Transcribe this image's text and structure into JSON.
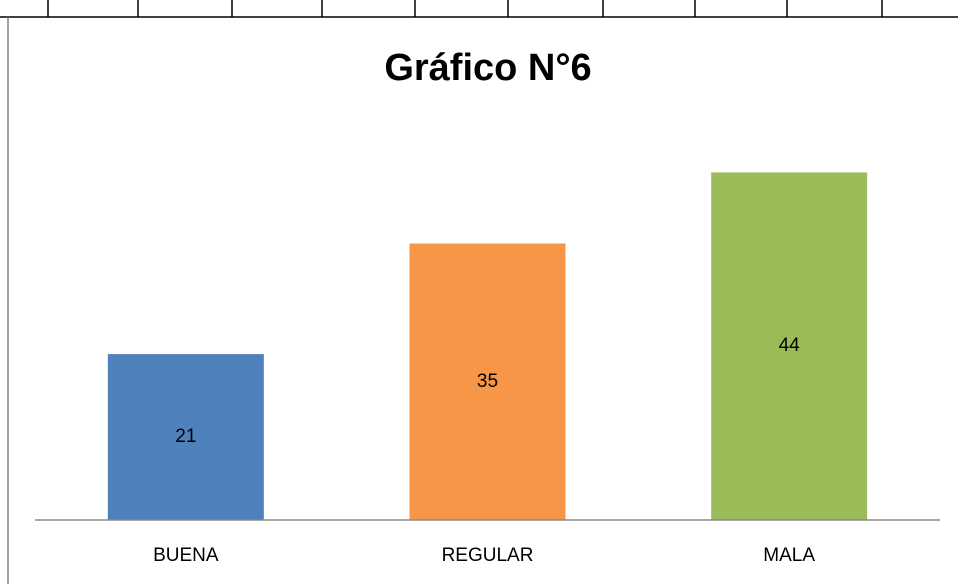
{
  "chart_data": {
    "type": "bar",
    "title": "Gráfico N°6",
    "categories": [
      "BUENA",
      "REGULAR",
      "MALA"
    ],
    "values": [
      21,
      35,
      44
    ],
    "colors": [
      "#4f81bd",
      "#f79646",
      "#9bbb59"
    ],
    "grid": false
  }
}
